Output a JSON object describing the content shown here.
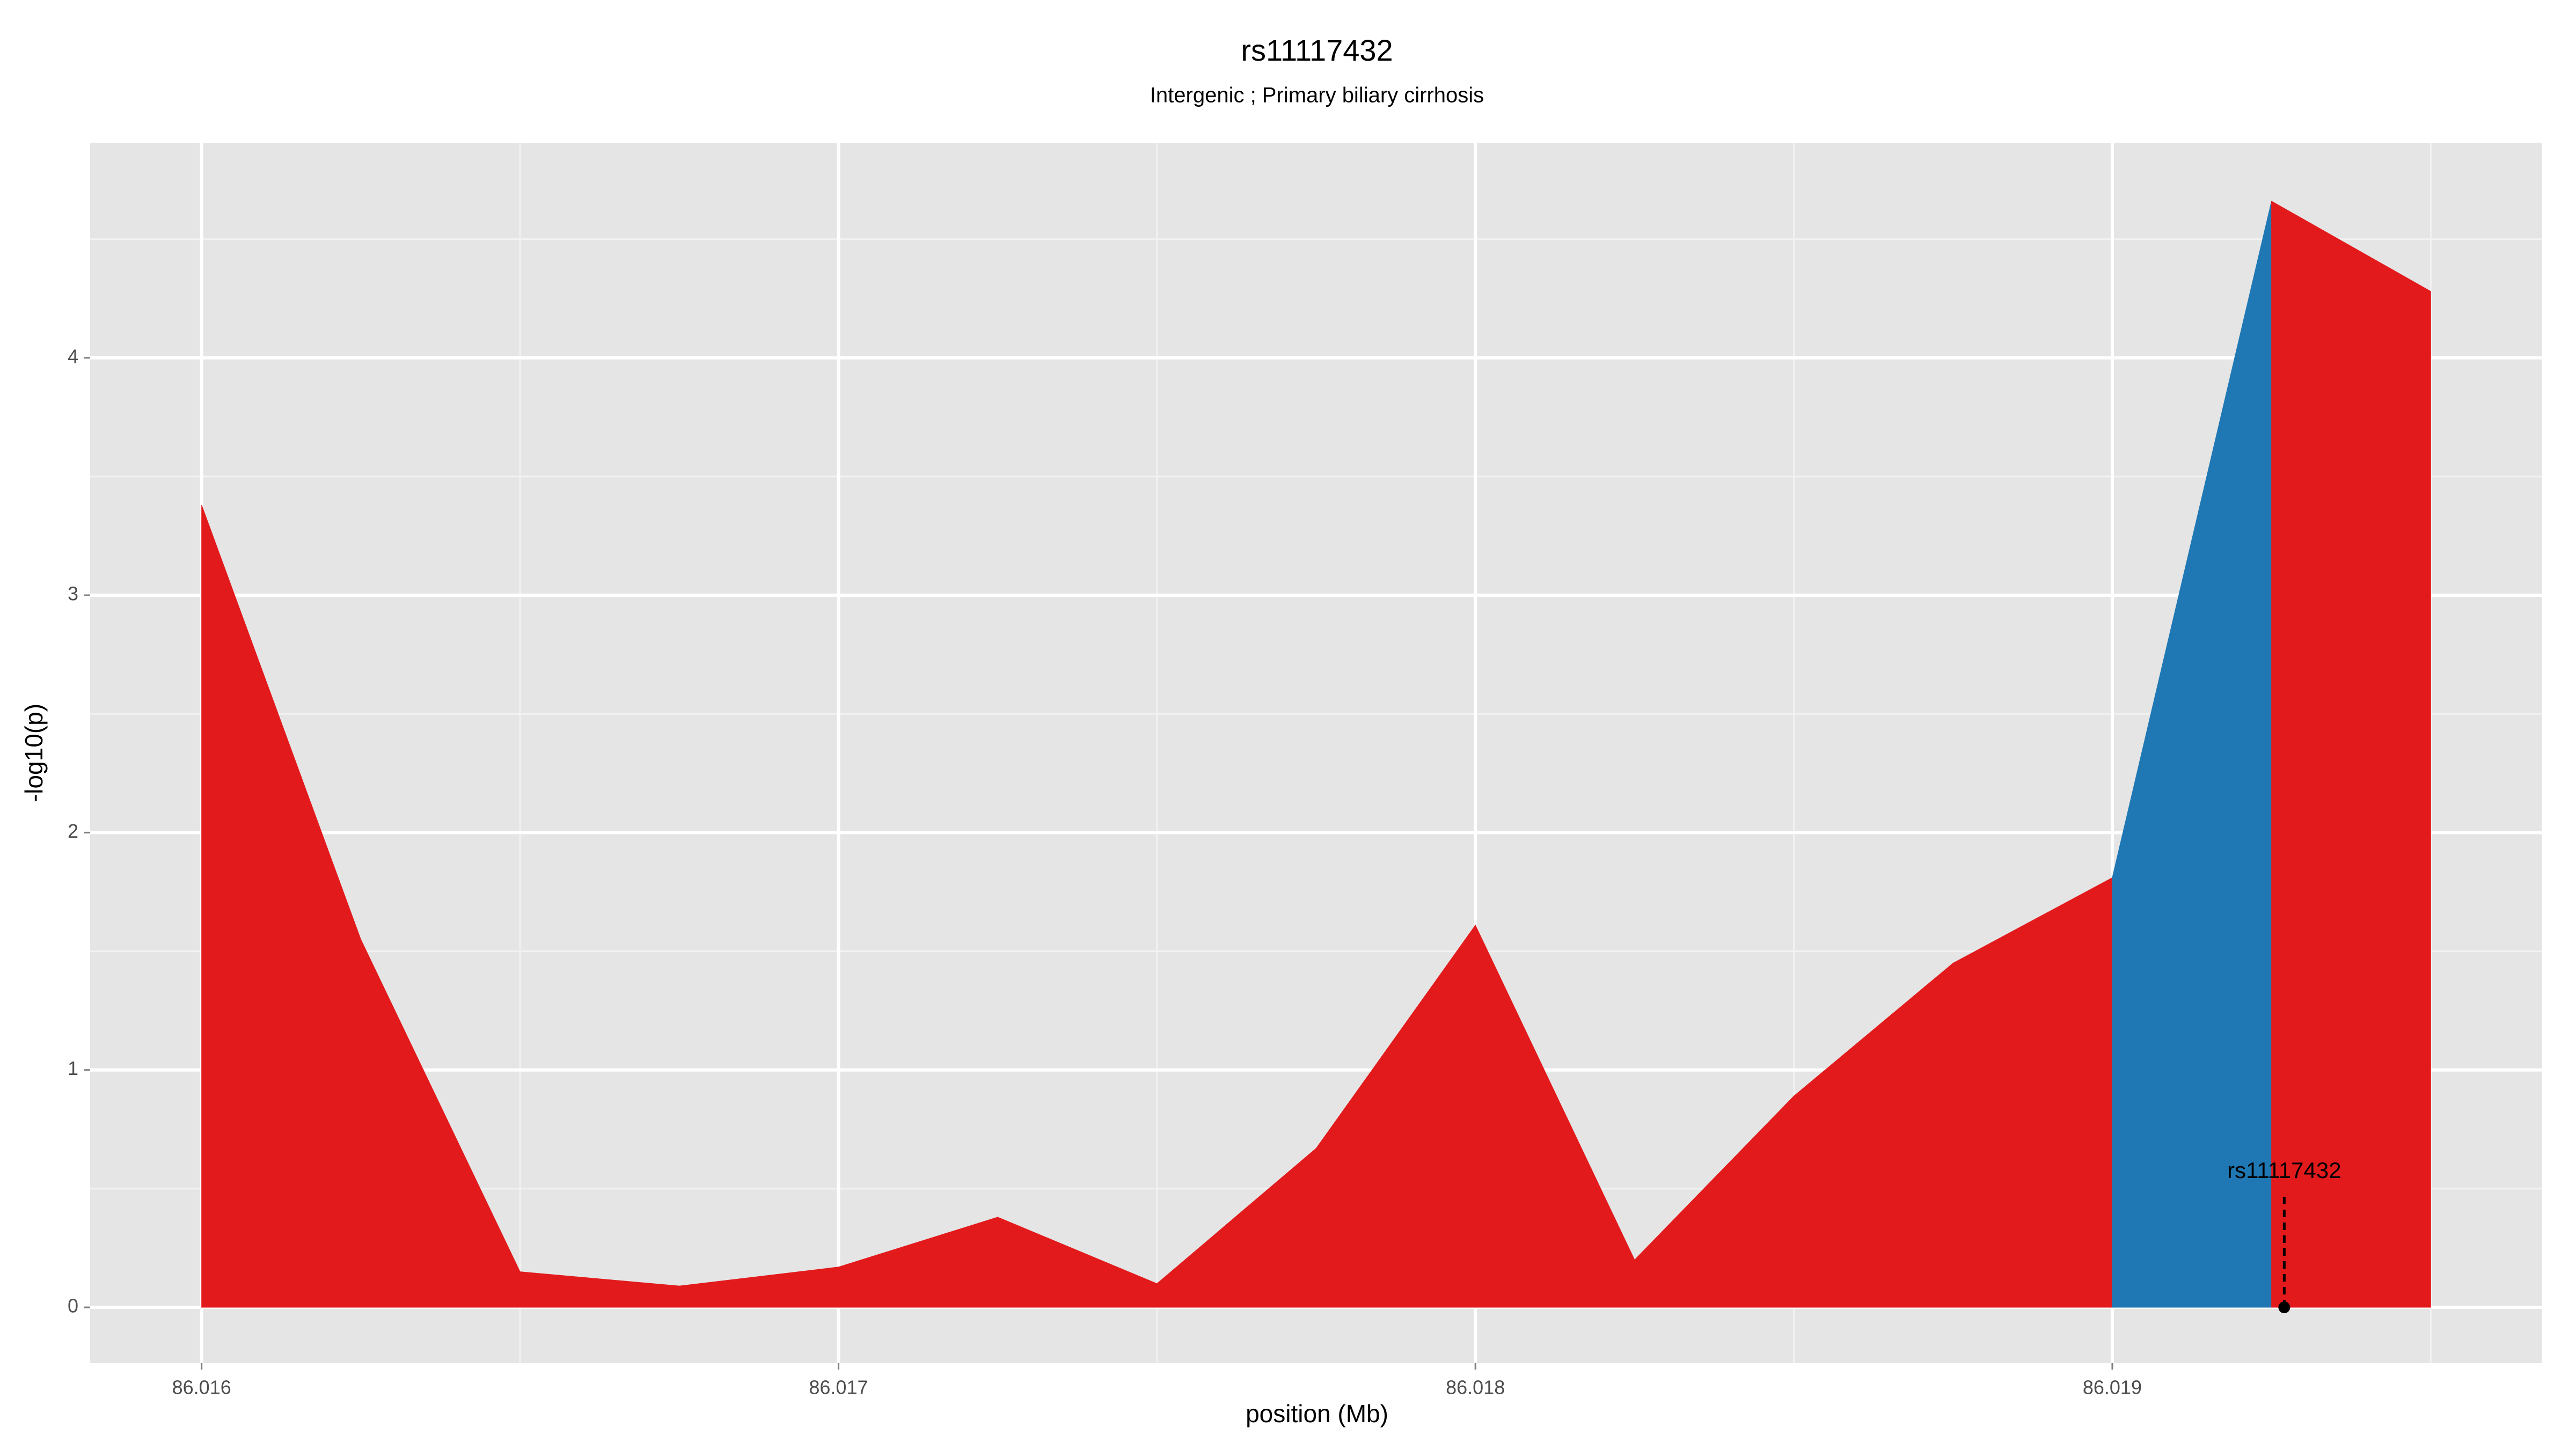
{
  "chart_data": {
    "type": "area",
    "title": "rs11117432",
    "subtitle": "Intergenic ; Primary biliary cirrhosis",
    "xlabel": "position (Mb)",
    "ylabel": "-log10(p)",
    "x": [
      86.016,
      86.01625,
      86.0165,
      86.01675,
      86.017,
      86.01725,
      86.0175,
      86.01775,
      86.018,
      86.01825,
      86.0185,
      86.01875,
      86.019,
      86.01925,
      86.0195
    ],
    "values": [
      3.38,
      1.55,
      0.15,
      0.09,
      0.17,
      0.38,
      0.1,
      0.67,
      1.61,
      0.2,
      0.89,
      1.45,
      1.81,
      4.66,
      4.28
    ],
    "segment_colors": [
      "#e31a1c",
      "#e31a1c",
      "#e31a1c",
      "#e31a1c",
      "#e31a1c",
      "#e31a1c",
      "#e31a1c",
      "#e31a1c",
      "#e31a1c",
      "#e31a1c",
      "#e31a1c",
      "#e31a1c",
      "#1f78b4",
      "#e31a1c"
    ],
    "xlim": [
      86.015825,
      86.019675
    ],
    "ylim": [
      -0.235,
      4.906
    ],
    "xticks": [
      86.016,
      86.017,
      86.018,
      86.019
    ],
    "yticks": [
      0,
      1,
      2,
      3,
      4
    ],
    "x_minor_ticks": [
      86.0165,
      86.0175,
      86.0185,
      86.0195
    ],
    "y_minor_ticks": [
      0.5,
      1.5,
      2.5,
      3.5,
      4.5
    ],
    "grid": true,
    "annotations": [
      {
        "text": "rs11117432",
        "x": 86.01927,
        "y": 0,
        "label_y": 0.57,
        "line_top": 0.47
      }
    ]
  }
}
